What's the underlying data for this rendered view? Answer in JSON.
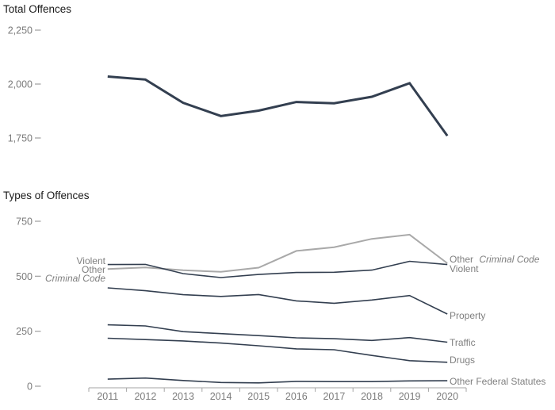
{
  "titles": {
    "top": "Total Offences",
    "bottom": "Types of Offences"
  },
  "colors": {
    "dark_line": "#333F50",
    "gray_line": "#A9A9A9",
    "axis": "#A6A6A6",
    "tick_label": "#7B7B7B",
    "series_label": "#7F7F7F",
    "title": "#1A1A1A",
    "background": "#FFFFFF"
  },
  "chart_data": [
    {
      "type": "line",
      "title": "Total Offences",
      "x": [
        "2011",
        "2012",
        "2013",
        "2014",
        "2015",
        "2016",
        "2017",
        "2018",
        "2019",
        "2020"
      ],
      "series": [
        {
          "name": "Total Offences",
          "color": "#333F50",
          "values": [
            2035,
            2021,
            1913,
            1852,
            1877,
            1917,
            1911,
            1941,
            2004,
            1760
          ]
        }
      ],
      "ylim": [
        1700,
        2300
      ],
      "y_ticks": [
        {
          "value": 2250,
          "label": "2,250"
        },
        {
          "value": 2000,
          "label": "2,000"
        },
        {
          "value": 1750,
          "label": "1,750"
        }
      ],
      "grid": false,
      "legend": "none",
      "x_axis_visible": false
    },
    {
      "type": "line",
      "title": "Types of Offences",
      "x": [
        "2011",
        "2012",
        "2013",
        "2014",
        "2015",
        "2016",
        "2017",
        "2018",
        "2019",
        "2020"
      ],
      "series": [
        {
          "name": "Other Criminal Code",
          "color": "#A9A9A9",
          "values": [
            533,
            540,
            527,
            520,
            539,
            615,
            632,
            670,
            689,
            559
          ]
        },
        {
          "name": "Violent",
          "color": "#333F50",
          "values": [
            553,
            554,
            512,
            494,
            508,
            517,
            518,
            528,
            568,
            553
          ]
        },
        {
          "name": "Property",
          "color": "#333F50",
          "values": [
            447,
            434,
            416,
            408,
            417,
            388,
            377,
            392,
            412,
            328
          ]
        },
        {
          "name": "Traffic",
          "color": "#333F50",
          "values": [
            279,
            274,
            248,
            239,
            230,
            220,
            216,
            208,
            221,
            200
          ]
        },
        {
          "name": "Drugs",
          "color": "#333F50",
          "values": [
            218,
            212,
            206,
            196,
            184,
            170,
            166,
            140,
            116,
            109
          ]
        },
        {
          "name": "Other Federal Statutes",
          "color": "#333F50",
          "values": [
            32,
            37,
            26,
            17,
            15,
            22,
            21,
            21,
            24,
            25
          ]
        }
      ],
      "ylim": [
        0,
        800
      ],
      "y_ticks": [
        {
          "value": 750,
          "label": "750"
        },
        {
          "value": 500,
          "label": "500"
        },
        {
          "value": 250,
          "label": "250"
        },
        {
          "value": 0,
          "label": "0"
        }
      ],
      "grid": false,
      "legend": "direct-labels",
      "x_axis_visible": true
    }
  ],
  "labels": {
    "left": {
      "violent": "Violent",
      "other": "Other",
      "criminal_code": "Criminal Code"
    },
    "right": {
      "other_cc_prefix": "Other",
      "other_cc_italic": "Criminal Code",
      "violent": "Violent",
      "property": "Property",
      "traffic": "Traffic",
      "drugs": "Drugs",
      "other_federal": "Other Federal Statutes"
    }
  }
}
